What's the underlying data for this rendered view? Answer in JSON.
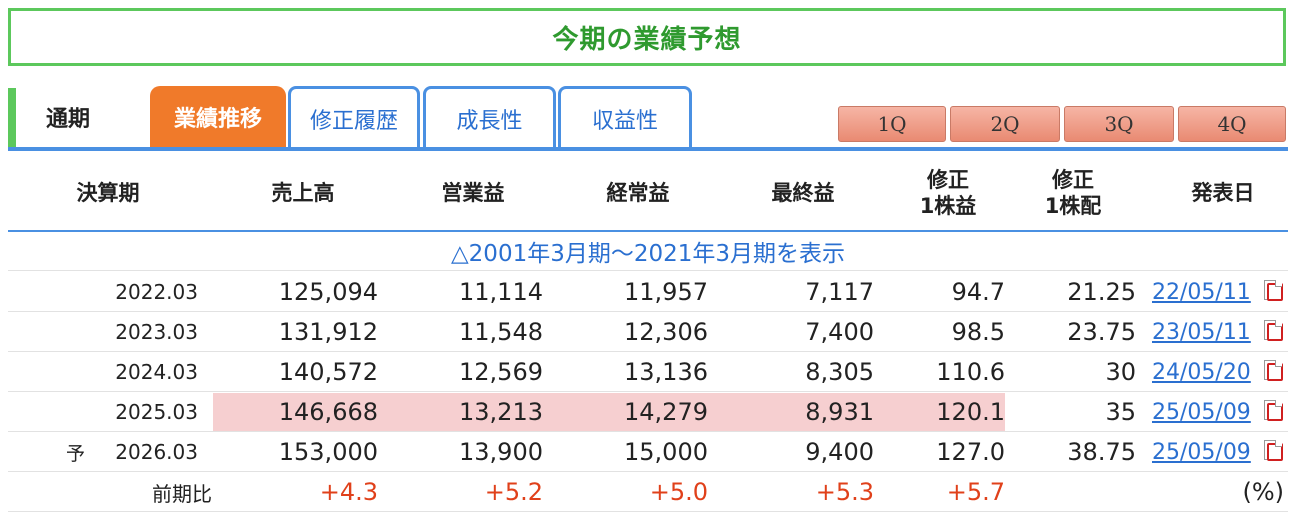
{
  "title": "今期の業績予想",
  "tabs": {
    "period": "通期",
    "items": [
      "業績推移",
      "修正履歴",
      "成長性",
      "収益性"
    ]
  },
  "quarters": [
    "1Q",
    "2Q",
    "3Q",
    "4Q"
  ],
  "headers": {
    "period": "決算期",
    "sales": "売上高",
    "op": "営業益",
    "ordinary": "経常益",
    "net": "最終益",
    "eps": "修正\n1株益",
    "dps": "修正\n1株配",
    "announce": "発表日"
  },
  "show_range": "△2001年3月期〜2021年3月期を表示",
  "rows": [
    {
      "prefix": "",
      "period": "2022.03",
      "sales": "125,094",
      "op": "11,114",
      "ordinary": "11,957",
      "net": "7,117",
      "eps": "94.7",
      "dps": "21.25",
      "date": "22/05/11"
    },
    {
      "prefix": "",
      "period": "2023.03",
      "sales": "131,912",
      "op": "11,548",
      "ordinary": "12,306",
      "net": "7,400",
      "eps": "98.5",
      "dps": "23.75",
      "date": "23/05/11"
    },
    {
      "prefix": "",
      "period": "2024.03",
      "sales": "140,572",
      "op": "12,569",
      "ordinary": "13,136",
      "net": "8,305",
      "eps": "110.6",
      "dps": "30",
      "date": "24/05/20"
    },
    {
      "prefix": "",
      "period": "2025.03",
      "sales": "146,668",
      "op": "13,213",
      "ordinary": "14,279",
      "net": "8,931",
      "eps": "120.1",
      "dps": "35",
      "date": "25/05/09"
    },
    {
      "prefix": "予",
      "period": "2026.03",
      "sales": "153,000",
      "op": "13,900",
      "ordinary": "15,000",
      "net": "9,400",
      "eps": "127.0",
      "dps": "38.75",
      "date": "25/05/09"
    }
  ],
  "ratio": {
    "label": "前期比",
    "sales": "+4.3",
    "op": "+5.2",
    "ordinary": "+5.0",
    "net": "+5.3",
    "eps": "+5.7",
    "unit": "(%)"
  },
  "colors": {
    "accent_green": "#5cc85c",
    "tab_orange": "#f07a2a",
    "link_blue": "#2a6fd0",
    "highlight": "#f6cfd0",
    "positive_red": "#e0401a"
  }
}
